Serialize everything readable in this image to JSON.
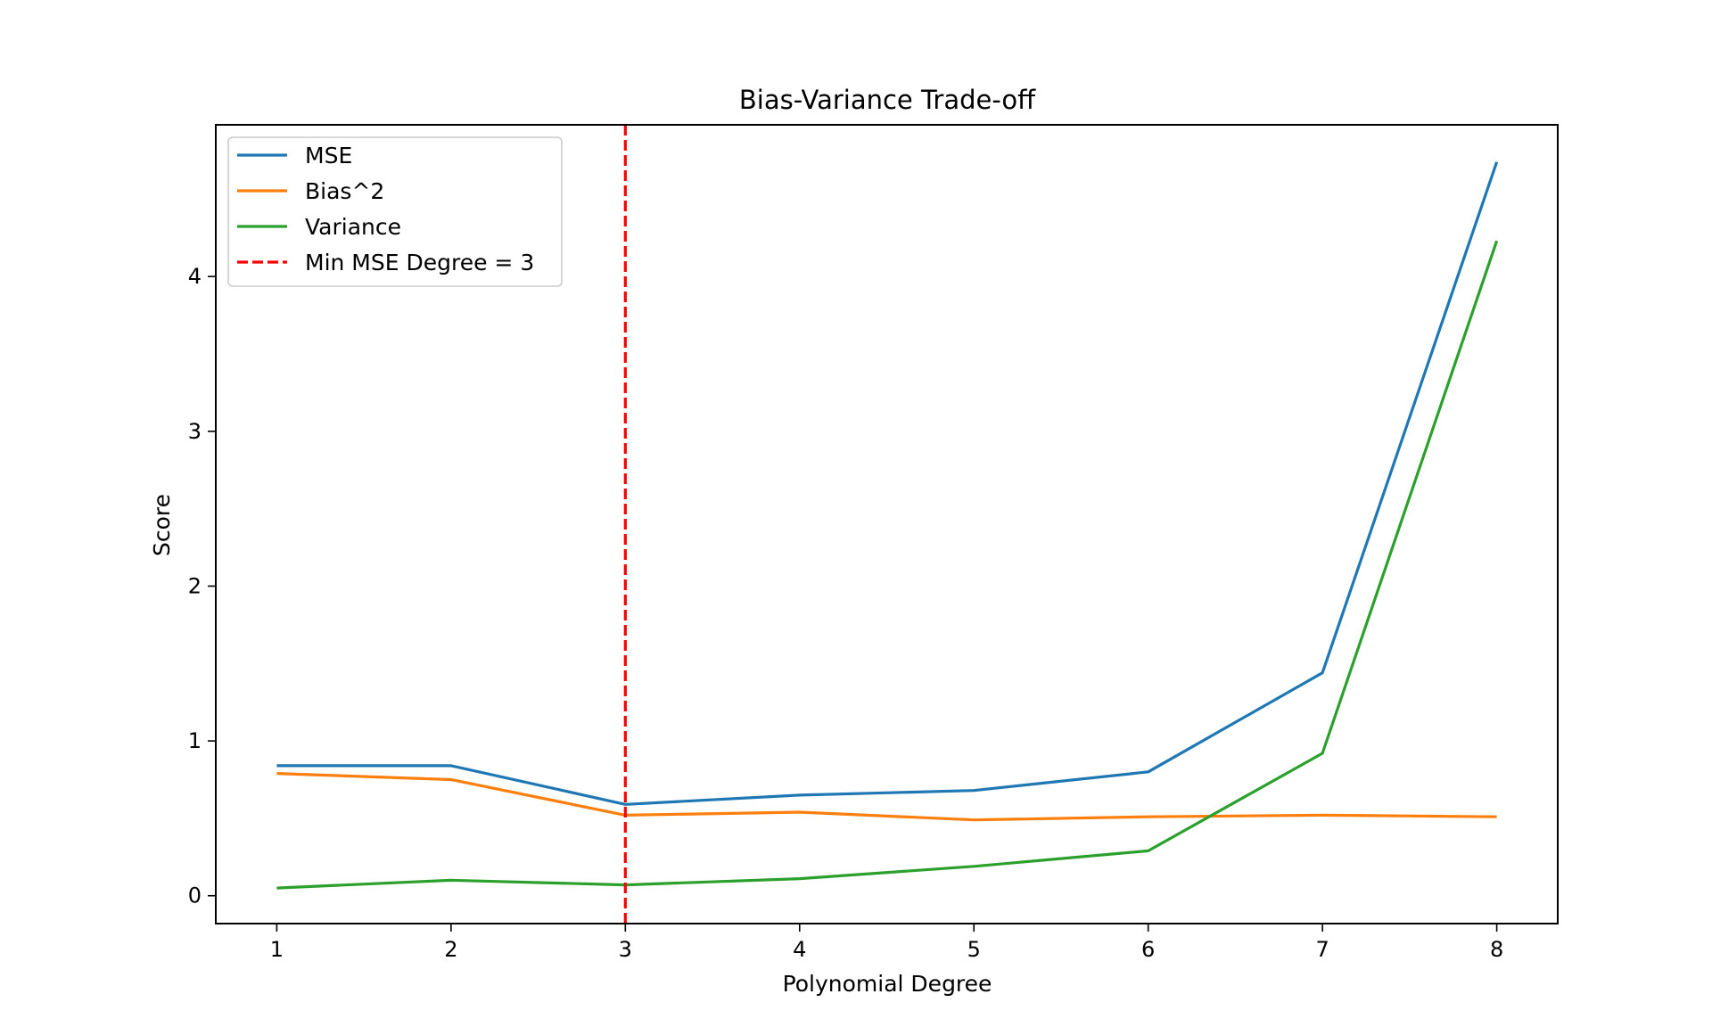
{
  "chart_data": {
    "type": "line",
    "title": "Bias-Variance Trade-off",
    "xlabel": "Polynomial Degree",
    "ylabel": "Score",
    "x": [
      1,
      2,
      3,
      4,
      5,
      6,
      7,
      8
    ],
    "xlim": [
      0.65,
      8.35
    ],
    "ylim": [
      -0.18,
      4.98
    ],
    "xticks": [
      "1",
      "2",
      "3",
      "4",
      "5",
      "6",
      "7",
      "8"
    ],
    "yticks": [
      "0",
      "1",
      "2",
      "3",
      "4"
    ],
    "series": [
      {
        "name": "MSE",
        "color": "#1f77b4",
        "dash": false,
        "values": [
          0.84,
          0.84,
          0.59,
          0.65,
          0.68,
          0.8,
          1.44,
          4.74
        ]
      },
      {
        "name": "Bias^2",
        "color": "#ff7f0e",
        "dash": false,
        "values": [
          0.79,
          0.75,
          0.52,
          0.54,
          0.49,
          0.51,
          0.52,
          0.51
        ]
      },
      {
        "name": "Variance",
        "color": "#2ca02c",
        "dash": false,
        "values": [
          0.05,
          0.1,
          0.07,
          0.11,
          0.19,
          0.29,
          0.92,
          4.23
        ]
      }
    ],
    "vline": {
      "name": "Min MSE Degree = 3",
      "x": 3,
      "color": "#ff0000",
      "dash": true
    },
    "legend": "upper-left",
    "grid": false
  }
}
